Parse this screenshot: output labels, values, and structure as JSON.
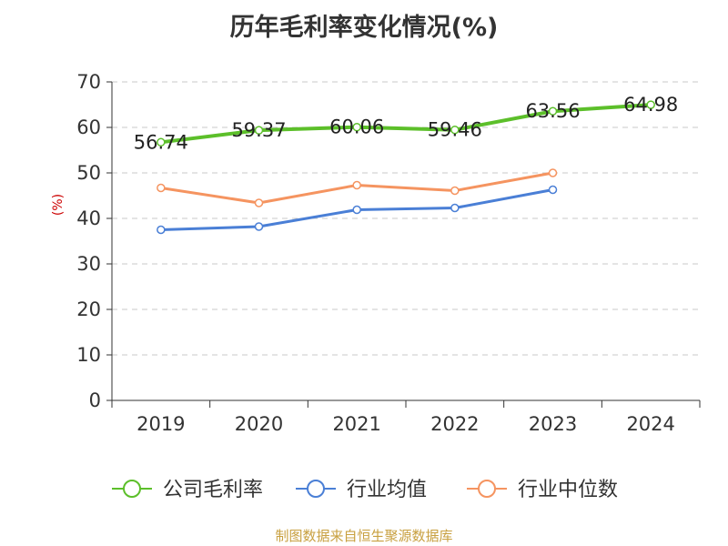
{
  "title": "历年毛利率变化情况(%)",
  "source": "制图数据来自恒生聚源数据库",
  "chart_data": {
    "type": "line",
    "title": "历年毛利率变化情况(%)",
    "xlabel": "",
    "ylabel": "(%)",
    "categories": [
      "2019",
      "2020",
      "2021",
      "2022",
      "2023",
      "2024"
    ],
    "ylim": [
      0,
      70
    ],
    "yticks": [
      0,
      10,
      20,
      30,
      40,
      50,
      60,
      70
    ],
    "grid": true,
    "legend_position": "bottom",
    "series": [
      {
        "name": "公司毛利率",
        "color": "#5cbf2a",
        "values": [
          56.74,
          59.37,
          60.06,
          59.46,
          63.56,
          64.98
        ],
        "data_labels": [
          "56.74",
          "59.37",
          "60.06",
          "59.46",
          "63.56",
          "64.98"
        ]
      },
      {
        "name": "行业均值",
        "color": "#4a7fd6",
        "values": [
          37.5,
          38.2,
          41.9,
          42.3,
          46.3,
          null
        ]
      },
      {
        "name": "行业中位数",
        "color": "#f59460",
        "values": [
          46.7,
          43.4,
          47.3,
          46.1,
          50.0,
          null
        ]
      }
    ]
  }
}
